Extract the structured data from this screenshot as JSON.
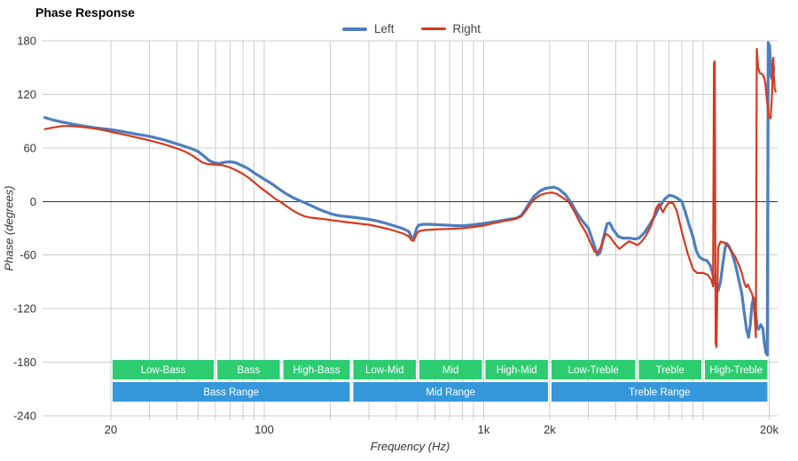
{
  "title": "Phase Response",
  "legend": {
    "items": [
      {
        "label": "Left",
        "color": "#4d7ebf",
        "thickness": 4
      },
      {
        "label": "Right",
        "color": "#d6391e",
        "thickness": 3
      }
    ]
  },
  "chart_data": {
    "type": "line",
    "title": "Phase Response",
    "xlabel": "Frequency (Hz)",
    "ylabel": "Phase (degrees)",
    "x_scale": "log",
    "x_range_hz": [
      9.8,
      21800
    ],
    "ylim": [
      -240,
      180
    ],
    "grid": true,
    "legend_position": "top-center",
    "y_ticks": [
      180,
      120,
      60,
      0,
      -60,
      -120,
      -180,
      -240
    ],
    "x_gridlines_hz": [
      20,
      30,
      40,
      50,
      60,
      70,
      80,
      90,
      100,
      200,
      300,
      400,
      500,
      600,
      700,
      800,
      900,
      1000,
      2000,
      3000,
      4000,
      5000,
      6000,
      7000,
      8000,
      9000,
      10000,
      20000
    ],
    "x_tick_labels": [
      {
        "f": 20,
        "label": "20"
      },
      {
        "f": 100,
        "label": "100"
      },
      {
        "f": 1000,
        "label": "1k"
      },
      {
        "f": 2000,
        "label": "2k"
      },
      {
        "f": 20000,
        "label": "20k"
      }
    ],
    "grid_color": "#cccccc",
    "zero_line_color": "#333333",
    "tick_label_color": "#333333",
    "series": [
      {
        "name": "Left",
        "color": "#4d7ebf",
        "width": 3.2,
        "points": [
          [
            10,
            94
          ],
          [
            11,
            91
          ],
          [
            12,
            89
          ],
          [
            13.5,
            86.5
          ],
          [
            15,
            84.5
          ],
          [
            17,
            82.5
          ],
          [
            20,
            80.5
          ],
          [
            23,
            78
          ],
          [
            26,
            75.5
          ],
          [
            30,
            73
          ],
          [
            35,
            69
          ],
          [
            40,
            64.5
          ],
          [
            45,
            60.5
          ],
          [
            48,
            58
          ],
          [
            50,
            56
          ],
          [
            53,
            51
          ],
          [
            56,
            46
          ],
          [
            59,
            43.5
          ],
          [
            62,
            42.5
          ],
          [
            66,
            44
          ],
          [
            70,
            44.5
          ],
          [
            74,
            43.5
          ],
          [
            78,
            41
          ],
          [
            82,
            38.5
          ],
          [
            86,
            35.5
          ],
          [
            90,
            32
          ],
          [
            95,
            28.5
          ],
          [
            100,
            25
          ],
          [
            108,
            20
          ],
          [
            116,
            14.5
          ],
          [
            125,
            9
          ],
          [
            135,
            4.5
          ],
          [
            145,
            1
          ],
          [
            155,
            -2
          ],
          [
            165,
            -5
          ],
          [
            175,
            -8
          ],
          [
            185,
            -10.5
          ],
          [
            200,
            -13.5
          ],
          [
            215,
            -15.5
          ],
          [
            230,
            -16.5
          ],
          [
            250,
            -17.5
          ],
          [
            270,
            -18.5
          ],
          [
            300,
            -20
          ],
          [
            330,
            -22
          ],
          [
            360,
            -24.5
          ],
          [
            400,
            -28
          ],
          [
            430,
            -30.5
          ],
          [
            455,
            -33.5
          ],
          [
            470,
            -40
          ],
          [
            480,
            -41
          ],
          [
            495,
            -30
          ],
          [
            505,
            -26.5
          ],
          [
            530,
            -25.5
          ],
          [
            570,
            -25.5
          ],
          [
            620,
            -26
          ],
          [
            680,
            -26.5
          ],
          [
            750,
            -27
          ],
          [
            820,
            -27
          ],
          [
            900,
            -26
          ],
          [
            1000,
            -24.5
          ],
          [
            1100,
            -23
          ],
          [
            1200,
            -21.5
          ],
          [
            1300,
            -20
          ],
          [
            1400,
            -19
          ],
          [
            1480,
            -16
          ],
          [
            1550,
            -9
          ],
          [
            1620,
            -1
          ],
          [
            1700,
            6
          ],
          [
            1800,
            11.5
          ],
          [
            1900,
            14.5
          ],
          [
            2000,
            15.5
          ],
          [
            2100,
            16
          ],
          [
            2200,
            14
          ],
          [
            2350,
            8
          ],
          [
            2500,
            -1
          ],
          [
            2650,
            -12
          ],
          [
            2800,
            -21
          ],
          [
            3000,
            -30
          ],
          [
            3150,
            -45
          ],
          [
            3300,
            -60
          ],
          [
            3400,
            -57
          ],
          [
            3500,
            -42
          ],
          [
            3650,
            -25
          ],
          [
            3750,
            -24
          ],
          [
            3900,
            -32
          ],
          [
            4100,
            -39
          ],
          [
            4300,
            -41
          ],
          [
            4600,
            -41
          ],
          [
            4900,
            -42
          ],
          [
            5100,
            -41
          ],
          [
            5400,
            -35
          ],
          [
            5700,
            -26
          ],
          [
            6000,
            -17
          ],
          [
            6300,
            -7
          ],
          [
            6700,
            3
          ],
          [
            7000,
            7
          ],
          [
            7300,
            6
          ],
          [
            7600,
            4
          ],
          [
            8000,
            0
          ],
          [
            8300,
            -12
          ],
          [
            8600,
            -25
          ],
          [
            9000,
            -40
          ],
          [
            9300,
            -55
          ],
          [
            9600,
            -62
          ],
          [
            10000,
            -65
          ],
          [
            10400,
            -66
          ],
          [
            10800,
            -72
          ],
          [
            11200,
            -86
          ],
          [
            11500,
            -97
          ],
          [
            11700,
            -100
          ],
          [
            12000,
            -90
          ],
          [
            12300,
            -70
          ],
          [
            12600,
            -52
          ],
          [
            12800,
            -47
          ],
          [
            13100,
            -50
          ],
          [
            13500,
            -57
          ],
          [
            14000,
            -70
          ],
          [
            14500,
            -86
          ],
          [
            15000,
            -103
          ],
          [
            15400,
            -125
          ],
          [
            15800,
            -145
          ],
          [
            16100,
            -152
          ],
          [
            16400,
            -138
          ],
          [
            16700,
            -115
          ],
          [
            17000,
            -108
          ],
          [
            17300,
            -122
          ],
          [
            17600,
            -140
          ],
          [
            17900,
            -143
          ],
          [
            18300,
            -138
          ],
          [
            18700,
            -142
          ],
          [
            19000,
            -158
          ],
          [
            19300,
            -169
          ],
          [
            19600,
            -172
          ],
          [
            19800,
            178
          ],
          [
            20100,
            174
          ],
          [
            20400,
            140
          ],
          [
            20700,
            136
          ],
          [
            21000,
            150
          ]
        ]
      },
      {
        "name": "Right",
        "color": "#d6391e",
        "width": 2.2,
        "points": [
          [
            10,
            81
          ],
          [
            11,
            83
          ],
          [
            12,
            84.5
          ],
          [
            13,
            84.5
          ],
          [
            14,
            84
          ],
          [
            16,
            82.5
          ],
          [
            18,
            80.5
          ],
          [
            20,
            78
          ],
          [
            23,
            75
          ],
          [
            26,
            72
          ],
          [
            30,
            68.5
          ],
          [
            35,
            64
          ],
          [
            40,
            59.5
          ],
          [
            44,
            55.5
          ],
          [
            47,
            51.5
          ],
          [
            50,
            47
          ],
          [
            52,
            44
          ],
          [
            55,
            42
          ],
          [
            58,
            41.5
          ],
          [
            62,
            41
          ],
          [
            65,
            40.5
          ],
          [
            70,
            38
          ],
          [
            75,
            34.5
          ],
          [
            80,
            31
          ],
          [
            85,
            26.5
          ],
          [
            90,
            21.5
          ],
          [
            95,
            16.5
          ],
          [
            100,
            12.5
          ],
          [
            107,
            7
          ],
          [
            113,
            2.5
          ],
          [
            118,
            0
          ],
          [
            125,
            -4.5
          ],
          [
            134,
            -9.5
          ],
          [
            143,
            -13.5
          ],
          [
            152,
            -16.5
          ],
          [
            162,
            -18
          ],
          [
            175,
            -19
          ],
          [
            190,
            -20
          ],
          [
            210,
            -21.5
          ],
          [
            235,
            -23
          ],
          [
            265,
            -24.5
          ],
          [
            300,
            -26
          ],
          [
            335,
            -28.5
          ],
          [
            370,
            -31
          ],
          [
            400,
            -33.5
          ],
          [
            430,
            -36
          ],
          [
            455,
            -39
          ],
          [
            470,
            -43.5
          ],
          [
            480,
            -44
          ],
          [
            495,
            -36
          ],
          [
            510,
            -33
          ],
          [
            540,
            -32
          ],
          [
            580,
            -31.5
          ],
          [
            640,
            -31
          ],
          [
            720,
            -30.5
          ],
          [
            800,
            -30
          ],
          [
            900,
            -28.5
          ],
          [
            1000,
            -27
          ],
          [
            1100,
            -24.5
          ],
          [
            1200,
            -22.5
          ],
          [
            1300,
            -21
          ],
          [
            1400,
            -19.5
          ],
          [
            1480,
            -17
          ],
          [
            1560,
            -10
          ],
          [
            1640,
            -2
          ],
          [
            1720,
            3.5
          ],
          [
            1820,
            7.5
          ],
          [
            1950,
            9.5
          ],
          [
            2050,
            10
          ],
          [
            2150,
            8.5
          ],
          [
            2300,
            4
          ],
          [
            2450,
            -1
          ],
          [
            2600,
            -12
          ],
          [
            2750,
            -24
          ],
          [
            2900,
            -33
          ],
          [
            3050,
            -45
          ],
          [
            3200,
            -56
          ],
          [
            3300,
            -58
          ],
          [
            3450,
            -49
          ],
          [
            3600,
            -36
          ],
          [
            3750,
            -39
          ],
          [
            3950,
            -47
          ],
          [
            4150,
            -53
          ],
          [
            4400,
            -48
          ],
          [
            4600,
            -44.5
          ],
          [
            4800,
            -46.5
          ],
          [
            5000,
            -49
          ],
          [
            5200,
            -46
          ],
          [
            5500,
            -38
          ],
          [
            5800,
            -27
          ],
          [
            6100,
            -8
          ],
          [
            6300,
            -2.5
          ],
          [
            6550,
            -12
          ],
          [
            6800,
            -5
          ],
          [
            7000,
            -1
          ],
          [
            7300,
            -2
          ],
          [
            7600,
            -11
          ],
          [
            8000,
            -34
          ],
          [
            8500,
            -58
          ],
          [
            9000,
            -76
          ],
          [
            9400,
            -80
          ],
          [
            10000,
            -80
          ],
          [
            10500,
            -82
          ],
          [
            10900,
            -88
          ],
          [
            11100,
            -95
          ],
          [
            11200,
            155
          ],
          [
            11300,
            157
          ],
          [
            11400,
            -158
          ],
          [
            11500,
            -163
          ],
          [
            11700,
            -52
          ],
          [
            12000,
            -45
          ],
          [
            12500,
            -46
          ],
          [
            13000,
            -50
          ],
          [
            13500,
            -56
          ],
          [
            14000,
            -62
          ],
          [
            14500,
            -70
          ],
          [
            15000,
            -80
          ],
          [
            15400,
            -91
          ],
          [
            15700,
            -96
          ],
          [
            16000,
            -93
          ],
          [
            16300,
            -98
          ],
          [
            16700,
            -103
          ],
          [
            17000,
            -112
          ],
          [
            17200,
            -130
          ],
          [
            17400,
            -152
          ],
          [
            17550,
            171
          ],
          [
            17800,
            150
          ],
          [
            18100,
            144
          ],
          [
            18500,
            143
          ],
          [
            18800,
            141
          ],
          [
            19000,
            138
          ],
          [
            19200,
            133
          ],
          [
            19500,
            115
          ],
          [
            19900,
            95
          ],
          [
            20300,
            93
          ],
          [
            20600,
            120
          ],
          [
            20800,
            158
          ],
          [
            20900,
            161
          ],
          [
            21000,
            140
          ],
          [
            21200,
            126
          ],
          [
            21400,
            123
          ]
        ]
      }
    ],
    "bands": {
      "sub_color": "#2ecc71",
      "range_color": "#3498db",
      "label_color": "#ffffff",
      "sub": [
        {
          "label": "Low-Bass",
          "f1": 20,
          "f2": 60
        },
        {
          "label": "Bass",
          "f1": 60,
          "f2": 120
        },
        {
          "label": "High-Bass",
          "f1": 120,
          "f2": 250
        },
        {
          "label": "Low-Mid",
          "f1": 250,
          "f2": 500
        },
        {
          "label": "Mid",
          "f1": 500,
          "f2": 1000
        },
        {
          "label": "High-Mid",
          "f1": 1000,
          "f2": 2000
        },
        {
          "label": "Low-Treble",
          "f1": 2000,
          "f2": 5000
        },
        {
          "label": "Treble",
          "f1": 5000,
          "f2": 10000
        },
        {
          "label": "High-Treble",
          "f1": 10000,
          "f2": 20000
        }
      ],
      "ranges": [
        {
          "label": "Bass Range",
          "f1": 20,
          "f2": 250
        },
        {
          "label": "Mid Range",
          "f1": 250,
          "f2": 2000
        },
        {
          "label": "Treble Range",
          "f1": 2000,
          "f2": 20000
        }
      ]
    }
  }
}
